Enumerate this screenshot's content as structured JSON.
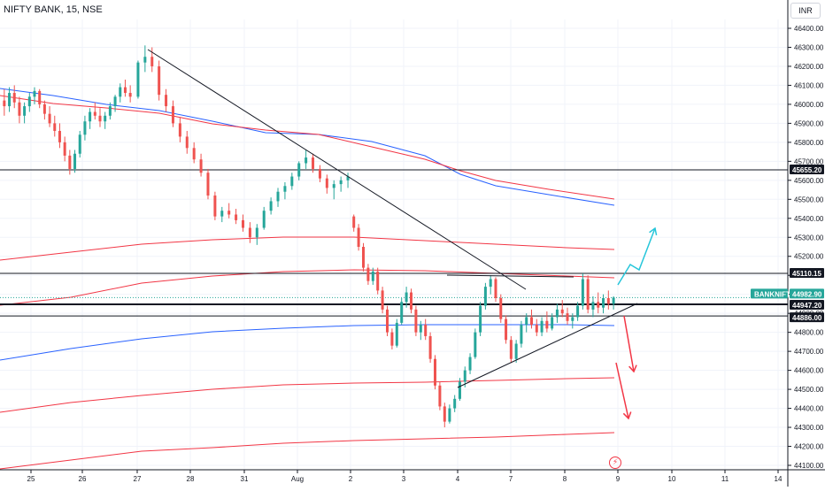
{
  "header": {
    "title": "NIFTY BANK, 15, NSE"
  },
  "currency_button": {
    "label": "INR"
  },
  "chart_data": {
    "type": "candlestick",
    "symbol": "NIFTY BANK",
    "interval": "15",
    "exchange": "NSE",
    "currency": "INR",
    "y_ticks": [
      "46400.00",
      "46300.00",
      "46200.00",
      "46100.00",
      "46000.00",
      "45900.00",
      "45800.00",
      "45700.00",
      "45600.00",
      "45500.00",
      "45400.00",
      "45300.00",
      "45200.00",
      "45100.00",
      "45000.00",
      "44900.00",
      "44800.00",
      "44700.00",
      "44600.00",
      "44500.00",
      "44400.00",
      "44300.00",
      "44200.00",
      "44100.00"
    ],
    "ylim": [
      44100,
      46400
    ],
    "x_ticks": [
      "25",
      "26",
      "27",
      "28",
      "31",
      "Aug",
      "2",
      "3",
      "4",
      "7",
      "8",
      "9",
      "10",
      "11",
      "14"
    ],
    "price_labels": [
      {
        "text": "45655.20",
        "value": 45655.2,
        "color": "#131722"
      },
      {
        "text": "45110.15",
        "value": 45110.15,
        "color": "#131722"
      },
      {
        "text": "BANKNIFTY",
        "value": 44982.9,
        "color": "#26a69a"
      },
      {
        "text": "44982.90",
        "value": 44982.9,
        "color": "#26a69a"
      },
      {
        "text": "44947.20",
        "value": 44947.2,
        "color": "#131722"
      },
      {
        "text": "44886.00",
        "value": 44886.0,
        "color": "#131722"
      }
    ],
    "horizontal_lines": [
      45655.2,
      45110.15,
      44947.2,
      44886.0
    ],
    "last_price": 44982.9,
    "candles_ohlc": [
      [
        46020,
        46080,
        45940,
        45990
      ],
      [
        45990,
        46090,
        45960,
        46060
      ],
      [
        46060,
        46100,
        45980,
        46010
      ],
      [
        46010,
        46040,
        45900,
        45940
      ],
      [
        45940,
        46010,
        45900,
        45990
      ],
      [
        45990,
        46060,
        45960,
        46040
      ],
      [
        46040,
        46090,
        46000,
        46070
      ],
      [
        46070,
        46080,
        45980,
        46000
      ],
      [
        46000,
        46020,
        45920,
        45950
      ],
      [
        45950,
        45990,
        45880,
        45900
      ],
      [
        45900,
        45940,
        45830,
        45860
      ],
      [
        45860,
        45900,
        45770,
        45800
      ],
      [
        45800,
        45830,
        45700,
        45730
      ],
      [
        45730,
        45760,
        45630,
        45660
      ],
      [
        45660,
        45760,
        45640,
        45740
      ],
      [
        45740,
        45860,
        45720,
        45840
      ],
      [
        45840,
        45940,
        45810,
        45910
      ],
      [
        45910,
        45980,
        45870,
        45960
      ],
      [
        45960,
        46010,
        45920,
        45940
      ],
      [
        45940,
        45980,
        45880,
        45910
      ],
      [
        45910,
        45960,
        45870,
        45940
      ],
      [
        45940,
        46010,
        45920,
        45990
      ],
      [
        45990,
        46050,
        45960,
        46040
      ],
      [
        46040,
        46110,
        46010,
        46090
      ],
      [
        46090,
        46130,
        46040,
        46060
      ],
      [
        46060,
        46100,
        46010,
        46040
      ],
      [
        46040,
        46230,
        46030,
        46220
      ],
      [
        46220,
        46310,
        46170,
        46250
      ],
      [
        46250,
        46300,
        46170,
        46200
      ],
      [
        46200,
        46230,
        46020,
        46050
      ],
      [
        46050,
        46080,
        45960,
        45990
      ],
      [
        45990,
        46020,
        45880,
        45900
      ],
      [
        45900,
        45930,
        45800,
        45830
      ],
      [
        45830,
        45860,
        45740,
        45770
      ],
      [
        45770,
        45800,
        45690,
        45710
      ],
      [
        45710,
        45740,
        45620,
        45640
      ],
      [
        45640,
        45660,
        45500,
        45520
      ],
      [
        45520,
        45540,
        45390,
        45410
      ],
      [
        45410,
        45460,
        45380,
        45440
      ],
      [
        45440,
        45480,
        45400,
        45420
      ],
      [
        45420,
        45450,
        45370,
        45390
      ],
      [
        45390,
        45420,
        45330,
        45350
      ],
      [
        45350,
        45380,
        45270,
        45300
      ],
      [
        45300,
        45370,
        45260,
        45350
      ],
      [
        45350,
        45460,
        45340,
        45440
      ],
      [
        45440,
        45510,
        45420,
        45490
      ],
      [
        45490,
        45560,
        45460,
        45540
      ],
      [
        45540,
        45590,
        45500,
        45570
      ],
      [
        45570,
        45640,
        45550,
        45620
      ],
      [
        45620,
        45700,
        45600,
        45690
      ],
      [
        45690,
        45760,
        45660,
        45720
      ],
      [
        45720,
        45740,
        45640,
        45660
      ],
      [
        45660,
        45680,
        45590,
        45610
      ],
      [
        45610,
        45630,
        45530,
        45560
      ],
      [
        45560,
        45600,
        45500,
        45580
      ],
      [
        45580,
        45620,
        45540,
        45600
      ],
      [
        45600,
        45640,
        45560,
        45620
      ],
      [
        45410,
        45420,
        45330,
        45350
      ],
      [
        45350,
        45370,
        45230,
        45250
      ],
      [
        45250,
        45270,
        45120,
        45140
      ],
      [
        45140,
        45160,
        45050,
        45070
      ],
      [
        45070,
        45140,
        45050,
        45120
      ],
      [
        45120,
        45140,
        45000,
        45020
      ],
      [
        45020,
        45040,
        44900,
        44920
      ],
      [
        44920,
        44940,
        44780,
        44800
      ],
      [
        44800,
        44820,
        44710,
        44730
      ],
      [
        44730,
        44870,
        44720,
        44850
      ],
      [
        44850,
        44980,
        44840,
        44960
      ],
      [
        44960,
        45040,
        44930,
        45010
      ],
      [
        45010,
        45030,
        44900,
        44920
      ],
      [
        44920,
        44940,
        44780,
        44800
      ],
      [
        44800,
        44860,
        44760,
        44840
      ],
      [
        44840,
        44870,
        44760,
        44780
      ],
      [
        44780,
        44800,
        44640,
        44660
      ],
      [
        44660,
        44680,
        44500,
        44520
      ],
      [
        44520,
        44540,
        44390,
        44410
      ],
      [
        44410,
        44430,
        44300,
        44330
      ],
      [
        44330,
        44420,
        44320,
        44400
      ],
      [
        44400,
        44470,
        44380,
        44450
      ],
      [
        44450,
        44560,
        44440,
        44540
      ],
      [
        44540,
        44620,
        44510,
        44600
      ],
      [
        44600,
        44690,
        44580,
        44670
      ],
      [
        44670,
        44820,
        44660,
        44800
      ],
      [
        44800,
        44960,
        44780,
        44940
      ],
      [
        44940,
        45060,
        44920,
        45040
      ],
      [
        45040,
        45100,
        45000,
        45080
      ],
      [
        45080,
        45090,
        44960,
        44980
      ],
      [
        44980,
        45000,
        44850,
        44870
      ],
      [
        44870,
        44890,
        44740,
        44760
      ],
      [
        44760,
        44780,
        44640,
        44660
      ],
      [
        44660,
        44760,
        44640,
        44740
      ],
      [
        44740,
        44860,
        44720,
        44840
      ],
      [
        44840,
        44900,
        44800,
        44880
      ],
      [
        44880,
        44920,
        44820,
        44840
      ],
      [
        44840,
        44870,
        44780,
        44800
      ],
      [
        44800,
        44880,
        44780,
        44860
      ],
      [
        44860,
        44910,
        44800,
        44820
      ],
      [
        44820,
        44900,
        44810,
        44880
      ],
      [
        44880,
        44950,
        44850,
        44920
      ],
      [
        44920,
        44970,
        44880,
        44900
      ],
      [
        44900,
        44930,
        44840,
        44860
      ],
      [
        44860,
        44900,
        44820,
        44880
      ],
      [
        44880,
        44960,
        44860,
        44940
      ],
      [
        44940,
        45110,
        44920,
        45080
      ],
      [
        45080,
        45100,
        44900,
        44920
      ],
      [
        44920,
        44990,
        44880,
        44960
      ],
      [
        44960,
        45010,
        44900,
        44930
      ],
      [
        44930,
        45000,
        44900,
        44980
      ],
      [
        44980,
        45020,
        44920,
        44950
      ],
      [
        44950,
        44990,
        44920,
        44983
      ]
    ],
    "trendlines": [
      {
        "name": "descending-trendline",
        "color": "#131722",
        "points": [
          [
            167,
            56
          ],
          [
            594,
            327
          ]
        ]
      },
      {
        "name": "ascending-trendline",
        "color": "#131722",
        "points": [
          [
            517,
            438
          ],
          [
            720,
            343
          ]
        ]
      },
      {
        "name": "resistance-segment",
        "color": "#131722",
        "points": [
          [
            505,
            311
          ],
          [
            648,
            313
          ]
        ]
      }
    ],
    "forecast_arrows": [
      {
        "name": "bullish-arrow",
        "color": "#26c6da",
        "points": [
          [
            698,
            322
          ],
          [
            712,
            299
          ],
          [
            722,
            305
          ],
          [
            740,
            258
          ]
        ]
      },
      {
        "name": "bearish-arrow-1",
        "color": "#f23645",
        "points": [
          [
            705,
            357
          ],
          [
            716,
            420
          ]
        ]
      },
      {
        "name": "bearish-arrow-2",
        "color": "#f23645",
        "points": [
          [
            696,
            410
          ],
          [
            710,
            473
          ]
        ]
      }
    ],
    "moving_averages": [
      {
        "name": "ma-blue-upper",
        "color": "#2962ff",
        "points": [
          [
            0,
            100
          ],
          [
            60,
            108
          ],
          [
            120,
            118
          ],
          [
            180,
            125
          ],
          [
            240,
            137
          ],
          [
            300,
            150
          ],
          [
            360,
            152
          ],
          [
            420,
            160
          ],
          [
            480,
            176
          ],
          [
            520,
            197
          ],
          [
            560,
            210
          ],
          [
            620,
            220
          ],
          [
            694,
            232
          ]
        ]
      },
      {
        "name": "ma-red-upper",
        "color": "#f23645",
        "points": [
          [
            0,
            108
          ],
          [
            60,
            117
          ],
          [
            120,
            122
          ],
          [
            180,
            128
          ],
          [
            240,
            140
          ],
          [
            300,
            147
          ],
          [
            360,
            152
          ],
          [
            420,
            166
          ],
          [
            480,
            180
          ],
          [
            520,
            193
          ],
          [
            560,
            204
          ],
          [
            620,
            214
          ],
          [
            694,
            225
          ]
        ]
      },
      {
        "name": "ma-red-mid-1",
        "color": "#f23645",
        "points": [
          [
            0,
            294
          ],
          [
            80,
            285
          ],
          [
            160,
            276
          ],
          [
            240,
            271
          ],
          [
            320,
            268
          ],
          [
            400,
            268
          ],
          [
            480,
            272
          ],
          [
            560,
            276
          ],
          [
            640,
            280
          ],
          [
            694,
            282
          ]
        ]
      },
      {
        "name": "ma-red-mid-2",
        "color": "#f23645",
        "points": [
          [
            0,
            345
          ],
          [
            80,
            336
          ],
          [
            160,
            320
          ],
          [
            240,
            312
          ],
          [
            320,
            307
          ],
          [
            400,
            305
          ],
          [
            480,
            306
          ],
          [
            560,
            309
          ],
          [
            640,
            312
          ],
          [
            694,
            314
          ]
        ]
      },
      {
        "name": "ma-blue-lower",
        "color": "#2962ff",
        "points": [
          [
            0,
            407
          ],
          [
            80,
            394
          ],
          [
            160,
            383
          ],
          [
            240,
            375
          ],
          [
            320,
            371
          ],
          [
            400,
            368
          ],
          [
            480,
            367
          ],
          [
            560,
            367
          ],
          [
            640,
            367
          ],
          [
            694,
            368
          ]
        ]
      },
      {
        "name": "ma-red-lower-1",
        "color": "#f23645",
        "points": [
          [
            0,
            466
          ],
          [
            80,
            455
          ],
          [
            160,
            447
          ],
          [
            240,
            440
          ],
          [
            320,
            435
          ],
          [
            400,
            433
          ],
          [
            480,
            432
          ],
          [
            560,
            430
          ],
          [
            640,
            428
          ],
          [
            694,
            427
          ]
        ]
      },
      {
        "name": "ma-red-lower-2",
        "color": "#f23645",
        "points": [
          [
            0,
            530
          ],
          [
            80,
            520
          ],
          [
            160,
            510
          ],
          [
            240,
            506
          ],
          [
            320,
            501
          ],
          [
            400,
            498
          ],
          [
            480,
            496
          ],
          [
            560,
            494
          ],
          [
            640,
            491
          ],
          [
            694,
            489
          ]
        ]
      }
    ],
    "colors": {
      "up": "#26a69a",
      "down": "#ef5350",
      "grid": "#f0f3fa",
      "axis": "#131722"
    },
    "grid": true
  }
}
